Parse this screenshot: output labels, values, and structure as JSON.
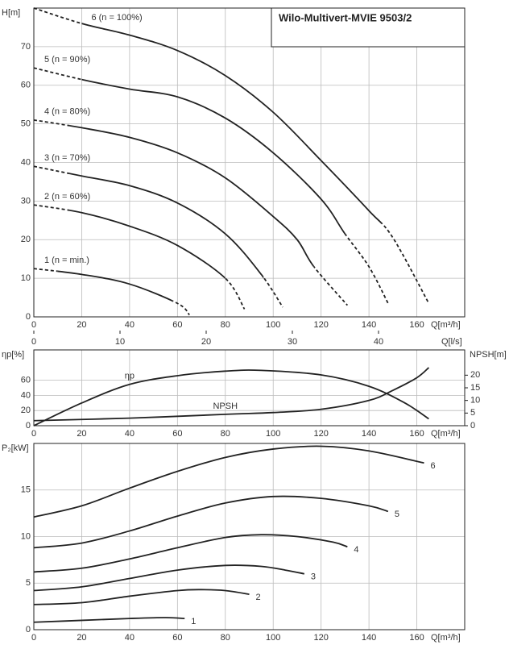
{
  "chart_data": [
    {
      "type": "line",
      "title": "Wilo-Multivert-MVIE 9503/2",
      "ylabel": "H[m]",
      "xlabel": "Q[m³/h]",
      "xlim": [
        0,
        180
      ],
      "xticks": [
        0,
        20,
        40,
        60,
        80,
        100,
        120,
        140,
        160
      ],
      "ylim": [
        0,
        80
      ],
      "yticks": [
        0,
        10,
        20,
        30,
        40,
        50,
        60,
        70
      ],
      "x2lim": [
        0,
        50
      ],
      "x2ticks": [
        0,
        10,
        20,
        30,
        40
      ],
      "x2label": "Q[l/s]",
      "grid": true,
      "color": "#222",
      "label_position": "start",
      "series": [
        {
          "name": "6 (n = 100%)",
          "solid_xlim": [
            20,
            145
          ],
          "x": [
            0,
            20,
            40,
            60,
            80,
            100,
            120,
            140,
            150,
            165
          ],
          "values": [
            80,
            76,
            73,
            69,
            62.5,
            53,
            40.5,
            27.5,
            20.5,
            3.5
          ]
        },
        {
          "name": "5 (n = 90%)",
          "solid_xlim": [
            20,
            130
          ],
          "x": [
            0,
            20,
            40,
            60,
            80,
            100,
            120,
            130,
            140,
            148
          ],
          "values": [
            64.5,
            61.5,
            59,
            57,
            51.5,
            42.5,
            30.5,
            21.5,
            13,
            3.5
          ]
        },
        {
          "name": "4 (n = 80%)",
          "solid_xlim": [
            15,
            117
          ],
          "x": [
            0,
            20,
            40,
            60,
            80,
            100,
            110,
            117,
            131
          ],
          "values": [
            51,
            49,
            46.5,
            42.5,
            36,
            26,
            20,
            13,
            3
          ]
        },
        {
          "name": "3 (n = 70%)",
          "solid_xlim": [
            15,
            96
          ],
          "x": [
            0,
            20,
            40,
            60,
            80,
            95,
            104
          ],
          "values": [
            39,
            36.5,
            34,
            29.5,
            21.5,
            11,
            2.5
          ]
        },
        {
          "name": "2 (n = 60%)",
          "solid_xlim": [
            15,
            80
          ],
          "x": [
            0,
            20,
            40,
            60,
            80,
            88
          ],
          "values": [
            29,
            27,
            23.5,
            18.5,
            10,
            2
          ]
        },
        {
          "name": "1 (n = min.)",
          "solid_xlim": [
            10,
            58
          ],
          "x": [
            0,
            20,
            40,
            60,
            65
          ],
          "values": [
            12.5,
            11,
            8.5,
            3.5,
            0.5
          ]
        }
      ]
    },
    {
      "type": "line",
      "ylabel": "ηp[%]",
      "y2label": "NPSH[m]",
      "xlabel": "Q[m³/h]",
      "xlim": [
        0,
        180
      ],
      "xticks": [
        0,
        20,
        40,
        60,
        80,
        100,
        120,
        140,
        160
      ],
      "ylim": [
        0,
        100
      ],
      "yticks": [
        0,
        20,
        40,
        60
      ],
      "y2lim": [
        0,
        30
      ],
      "y2ticks": [
        0,
        5,
        10,
        15,
        20
      ],
      "grid": true,
      "color": "#222",
      "label_position": "middle",
      "series": [
        {
          "name": "ηp",
          "x": [
            0,
            20,
            40,
            60,
            80,
            95,
            120,
            140,
            155,
            165
          ],
          "values": [
            0,
            30,
            54.5,
            66,
            72,
            73,
            67,
            52,
            30,
            9
          ]
        },
        {
          "name": "NPSH",
          "axis": "y2",
          "x": [
            0,
            40,
            80,
            100,
            120,
            140,
            150,
            160,
            165
          ],
          "values": [
            2,
            3,
            4.5,
            5.2,
            6.5,
            10,
            14,
            19,
            23
          ]
        }
      ]
    },
    {
      "type": "line",
      "ylabel": "P₂[kW]",
      "xlabel": "Q[m³/h]",
      "xlim": [
        0,
        180
      ],
      "xticks": [
        0,
        20,
        40,
        60,
        80,
        100,
        120,
        140,
        160
      ],
      "ylim": [
        0,
        20
      ],
      "yticks": [
        0,
        5,
        10,
        15
      ],
      "grid": true,
      "color": "#222",
      "label_position": "end",
      "series": [
        {
          "name": "6",
          "x": [
            0,
            20,
            40,
            60,
            80,
            100,
            120,
            140,
            163
          ],
          "values": [
            12.1,
            13.3,
            15.2,
            17,
            18.5,
            19.4,
            19.7,
            19.2,
            17.9
          ]
        },
        {
          "name": "5",
          "x": [
            0,
            20,
            40,
            60,
            80,
            100,
            120,
            140,
            148
          ],
          "values": [
            8.8,
            9.3,
            10.6,
            12.2,
            13.6,
            14.3,
            14.1,
            13.3,
            12.7
          ]
        },
        {
          "name": "4",
          "x": [
            0,
            20,
            40,
            60,
            80,
            95,
            110,
            125,
            131
          ],
          "values": [
            6.2,
            6.6,
            7.6,
            8.8,
            9.9,
            10.2,
            10,
            9.4,
            8.9
          ]
        },
        {
          "name": "3",
          "x": [
            0,
            20,
            40,
            60,
            80,
            95,
            105,
            113
          ],
          "values": [
            4.2,
            4.6,
            5.5,
            6.4,
            6.9,
            6.8,
            6.4,
            6
          ]
        },
        {
          "name": "2",
          "x": [
            0,
            20,
            40,
            60,
            70,
            80,
            90
          ],
          "values": [
            2.7,
            2.9,
            3.6,
            4.2,
            4.3,
            4.2,
            3.8
          ]
        },
        {
          "name": "1",
          "x": [
            0,
            20,
            40,
            55,
            63
          ],
          "values": [
            0.8,
            1,
            1.2,
            1.3,
            1.2
          ]
        }
      ]
    }
  ]
}
